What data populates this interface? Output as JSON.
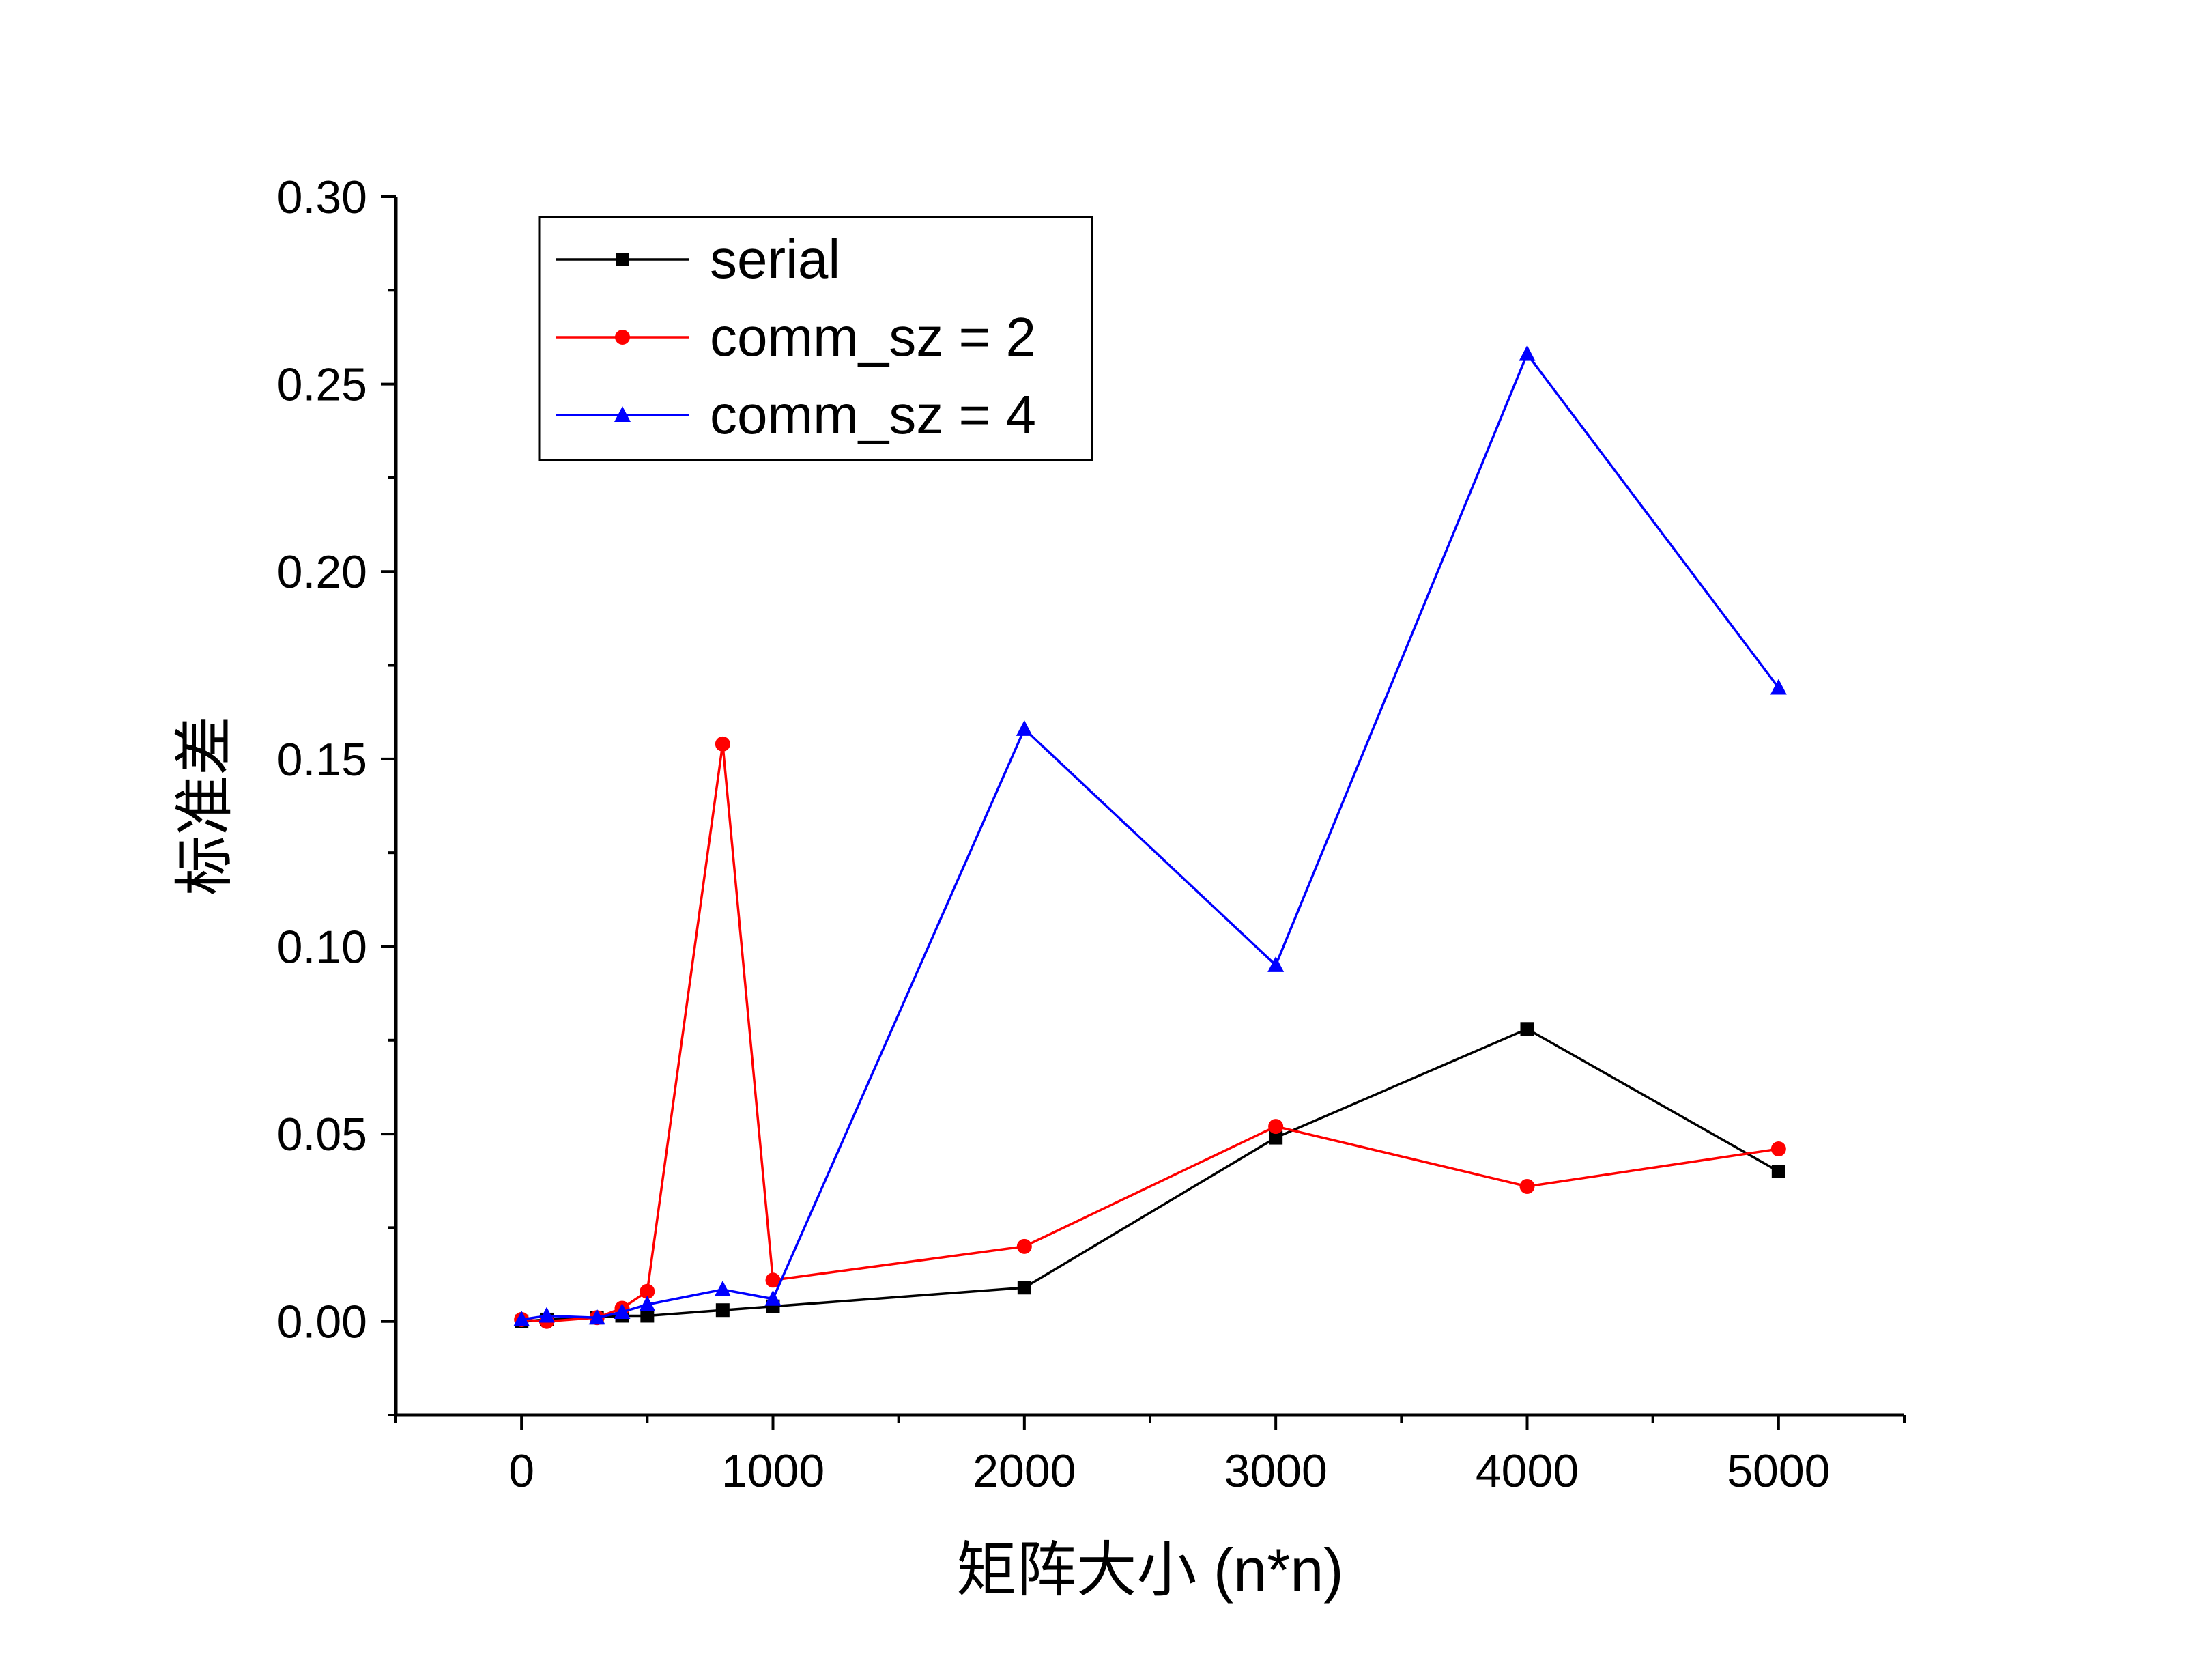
{
  "chart_data": {
    "type": "line",
    "xlabel": "矩阵大小 (n*n)",
    "ylabel": "标准差",
    "xlim": [
      -500,
      5500
    ],
    "ylim": [
      -0.025,
      0.3
    ],
    "x_ticks": [
      "0",
      "1000",
      "2000",
      "3000",
      "4000",
      "5000"
    ],
    "y_ticks": [
      "0.00",
      "0.05",
      "0.10",
      "0.15",
      "0.20",
      "0.25",
      "0.30"
    ],
    "grid": false,
    "legend_position": "top-left",
    "series": [
      {
        "name": "serial",
        "color": "#000000",
        "marker": "square",
        "x": [
          0,
          100,
          300,
          400,
          500,
          800,
          1000,
          2000,
          3000,
          4000,
          5000
        ],
        "y": [
          0.0,
          0.0005,
          0.001,
          0.0015,
          0.0015,
          0.003,
          0.004,
          0.009,
          0.049,
          0.078,
          0.04
        ]
      },
      {
        "name": "comm_sz = 2",
        "color": "#ff0000",
        "marker": "circle",
        "x": [
          0,
          100,
          300,
          400,
          500,
          800,
          1000,
          2000,
          3000,
          4000,
          5000
        ],
        "y": [
          0.0005,
          0.0,
          0.001,
          0.0035,
          0.008,
          0.154,
          0.011,
          0.02,
          0.052,
          0.036,
          0.046
        ]
      },
      {
        "name": "comm_sz = 4",
        "color": "#0000ff",
        "marker": "triangle",
        "x": [
          0,
          100,
          300,
          400,
          500,
          800,
          1000,
          2000,
          3000,
          4000,
          5000
        ],
        "y": [
          0.0005,
          0.0015,
          0.001,
          0.0025,
          0.0045,
          0.0085,
          0.006,
          0.158,
          0.095,
          0.258,
          0.169
        ]
      }
    ]
  }
}
